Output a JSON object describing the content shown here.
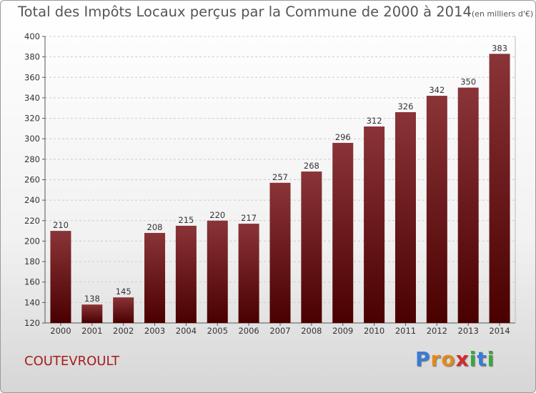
{
  "title": "Total des Impôts Locaux perçus par la Commune de 2000 à 2014",
  "title_unit": "(en milliers d'€)",
  "commune": "COUTEVROULT",
  "logo": {
    "letters": [
      "P",
      "r",
      "o",
      "x",
      "i",
      "t",
      "i"
    ],
    "colors": [
      "#3a7bd5",
      "#e08a1e",
      "#e08a1e",
      "#d42a2a",
      "#3aa83a",
      "#3a7bd5",
      "#3aa83a"
    ]
  },
  "colors": {
    "bar_top": "#8a3438",
    "bar_bottom": "#4a0000",
    "grid": "#cccccc",
    "text": "#333333"
  },
  "chart_data": {
    "type": "bar",
    "categories": [
      "2000",
      "2001",
      "2002",
      "2003",
      "2004",
      "2005",
      "2006",
      "2007",
      "2008",
      "2009",
      "2010",
      "2011",
      "2012",
      "2013",
      "2014"
    ],
    "values": [
      210,
      138,
      145,
      208,
      215,
      220,
      217,
      257,
      268,
      296,
      312,
      326,
      342,
      350,
      383
    ],
    "value_labels": [
      "210",
      "138",
      "145",
      "208",
      "215",
      "220",
      "217",
      "257",
      "268",
      "296",
      "312",
      "326",
      "342",
      "350",
      "383"
    ],
    "ylim": [
      120,
      400
    ],
    "yticks": [
      120,
      140,
      160,
      180,
      200,
      220,
      240,
      260,
      280,
      300,
      320,
      340,
      360,
      380,
      400
    ],
    "grid": true
  }
}
